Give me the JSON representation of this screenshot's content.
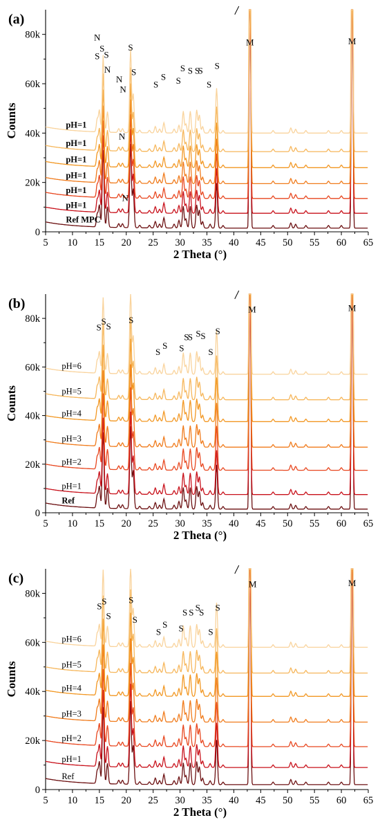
{
  "chart_data": [
    {
      "type": "line",
      "panel_label": "(a)",
      "xlabel": "2 Theta (°)",
      "ylabel": "Counts",
      "xlim": [
        5,
        65
      ],
      "x_axis_break": true,
      "x_ticks": [
        5,
        10,
        15,
        20,
        25,
        30,
        35,
        40,
        45,
        50,
        55,
        60,
        65
      ],
      "ylim": [
        0,
        90000
      ],
      "y_ticks": [
        0,
        20000,
        40000,
        60000,
        80000
      ],
      "y_tick_labels": [
        "0",
        "20k",
        "40k",
        "60k",
        "80k"
      ],
      "label_style": "bold",
      "series": [
        {
          "name": "Ref MPC",
          "color": "#6b0f10",
          "offset": 1500
        },
        {
          "name": "pH=1",
          "color": "#c8101a",
          "offset": 7500
        },
        {
          "name": "pH=1",
          "color": "#e8461e",
          "offset": 13500
        },
        {
          "name": "pH=1",
          "color": "#f07a1a",
          "offset": 19500
        },
        {
          "name": "pH=1",
          "color": "#f29722",
          "offset": 26000
        },
        {
          "name": "pH=1",
          "color": "#f6b65a",
          "offset": 32500
        },
        {
          "name": "pH=1",
          "color": "#f9d39c",
          "offset": 40000
        }
      ],
      "peak_annotations": [
        {
          "x": 14.6,
          "y": 70000,
          "text": "S"
        },
        {
          "x": 14.6,
          "y": 77500,
          "text": "N"
        },
        {
          "x": 15.5,
          "y": 73000,
          "text": "S"
        },
        {
          "x": 16.3,
          "y": 70500,
          "text": "S"
        },
        {
          "x": 16.5,
          "y": 64500,
          "text": "N"
        },
        {
          "x": 18.7,
          "y": 60500,
          "text": "N"
        },
        {
          "x": 19.4,
          "y": 56500,
          "text": "N"
        },
        {
          "x": 19.2,
          "y": 37500,
          "text": "N"
        },
        {
          "x": 19.8,
          "y": 12500,
          "text": "N"
        },
        {
          "x": 20.8,
          "y": 73500,
          "text": "S"
        },
        {
          "x": 21.4,
          "y": 63500,
          "text": "S"
        },
        {
          "x": 25.5,
          "y": 58500,
          "text": "S"
        },
        {
          "x": 26.9,
          "y": 61500,
          "text": "S"
        },
        {
          "x": 29.7,
          "y": 60000,
          "text": "S"
        },
        {
          "x": 30.5,
          "y": 65000,
          "text": "S"
        },
        {
          "x": 31.9,
          "y": 64000,
          "text": "S"
        },
        {
          "x": 33.2,
          "y": 64000,
          "text": "S"
        },
        {
          "x": 33.8,
          "y": 64000,
          "text": "S"
        },
        {
          "x": 35.4,
          "y": 58500,
          "text": "S"
        },
        {
          "x": 36.9,
          "y": 66000,
          "text": "S"
        },
        {
          "x": 43.0,
          "y": 75500,
          "text": "M"
        },
        {
          "x": 62.0,
          "y": 76000,
          "text": "M"
        }
      ]
    },
    {
      "type": "line",
      "panel_label": "(b)",
      "xlabel": "2 Theta (°)",
      "ylabel": "Counts",
      "xlim": [
        5,
        65
      ],
      "x_axis_break": true,
      "x_ticks": [
        5,
        10,
        15,
        20,
        25,
        30,
        35,
        40,
        45,
        50,
        55,
        60,
        65
      ],
      "ylim": [
        0,
        90000
      ],
      "y_ticks": [
        0,
        20000,
        40000,
        60000,
        80000
      ],
      "y_tick_labels": [
        "0",
        "20k",
        "40k",
        "60k",
        "80k"
      ],
      "label_style": "mixed",
      "series": [
        {
          "name": "Ref",
          "color": "#6b0f10",
          "offset": 1500
        },
        {
          "name": "pH=1",
          "color": "#c8101a",
          "offset": 7500
        },
        {
          "name": "pH=2",
          "color": "#e8461e",
          "offset": 17500
        },
        {
          "name": "pH=3",
          "color": "#f07a1a",
          "offset": 27000
        },
        {
          "name": "pH=4",
          "color": "#f29722",
          "offset": 37500
        },
        {
          "name": "pH=5",
          "color": "#f6b65a",
          "offset": 46500
        },
        {
          "name": "pH=6",
          "color": "#f9d39c",
          "offset": 57000
        }
      ],
      "peak_annotations": [
        {
          "x": 14.9,
          "y": 75000,
          "text": "S"
        },
        {
          "x": 15.8,
          "y": 77500,
          "text": "S"
        },
        {
          "x": 16.7,
          "y": 75500,
          "text": "S"
        },
        {
          "x": 20.9,
          "y": 78000,
          "text": "S"
        },
        {
          "x": 25.9,
          "y": 65000,
          "text": "S"
        },
        {
          "x": 27.2,
          "y": 67500,
          "text": "S"
        },
        {
          "x": 30.3,
          "y": 66500,
          "text": "S"
        },
        {
          "x": 31.2,
          "y": 71000,
          "text": "S"
        },
        {
          "x": 31.9,
          "y": 71000,
          "text": "S"
        },
        {
          "x": 33.4,
          "y": 72500,
          "text": "S"
        },
        {
          "x": 34.3,
          "y": 71500,
          "text": "S"
        },
        {
          "x": 35.7,
          "y": 65000,
          "text": "S"
        },
        {
          "x": 37.0,
          "y": 73500,
          "text": "S"
        },
        {
          "x": 43.4,
          "y": 82500,
          "text": "M"
        },
        {
          "x": 62.0,
          "y": 83000,
          "text": "M"
        }
      ]
    },
    {
      "type": "line",
      "panel_label": "(c)",
      "xlabel": "2 Theta (°)",
      "ylabel": "Counts",
      "xlim": [
        5,
        65
      ],
      "x_axis_break": true,
      "x_ticks": [
        5,
        10,
        15,
        20,
        25,
        30,
        35,
        40,
        45,
        50,
        55,
        60,
        65
      ],
      "ylim": [
        0,
        90000
      ],
      "y_ticks": [
        0,
        20000,
        40000,
        60000,
        80000
      ],
      "y_tick_labels": [
        "0",
        "20k",
        "40k",
        "60k",
        "80k"
      ],
      "label_style": "normal",
      "series": [
        {
          "name": "Ref",
          "color": "#6b0f10",
          "offset": 2000
        },
        {
          "name": "pH=1",
          "color": "#c8101a",
          "offset": 9000
        },
        {
          "name": "pH=2",
          "color": "#e8461e",
          "offset": 17500
        },
        {
          "name": "pH=3",
          "color": "#f07a1a",
          "offset": 27500
        },
        {
          "name": "pH=4",
          "color": "#f29722",
          "offset": 38000
        },
        {
          "name": "pH=5",
          "color": "#f6b65a",
          "offset": 47500
        },
        {
          "name": "pH=6",
          "color": "#f9d39c",
          "offset": 58000
        }
      ],
      "peak_annotations": [
        {
          "x": 15.0,
          "y": 73500,
          "text": "S"
        },
        {
          "x": 15.9,
          "y": 75500,
          "text": "S"
        },
        {
          "x": 16.7,
          "y": 69500,
          "text": "S"
        },
        {
          "x": 20.9,
          "y": 76000,
          "text": "S"
        },
        {
          "x": 21.6,
          "y": 68000,
          "text": "S"
        },
        {
          "x": 26.0,
          "y": 63000,
          "text": "S"
        },
        {
          "x": 27.2,
          "y": 66000,
          "text": "S"
        },
        {
          "x": 30.2,
          "y": 64500,
          "text": "S"
        },
        {
          "x": 30.9,
          "y": 71000,
          "text": "S"
        },
        {
          "x": 32.1,
          "y": 71000,
          "text": "S"
        },
        {
          "x": 33.3,
          "y": 73000,
          "text": "S"
        },
        {
          "x": 34.0,
          "y": 71000,
          "text": "S"
        },
        {
          "x": 35.7,
          "y": 63000,
          "text": "S"
        },
        {
          "x": 37.0,
          "y": 73000,
          "text": "S"
        },
        {
          "x": 43.5,
          "y": 82500,
          "text": "M"
        },
        {
          "x": 62.0,
          "y": 83000,
          "text": "M"
        }
      ]
    }
  ]
}
